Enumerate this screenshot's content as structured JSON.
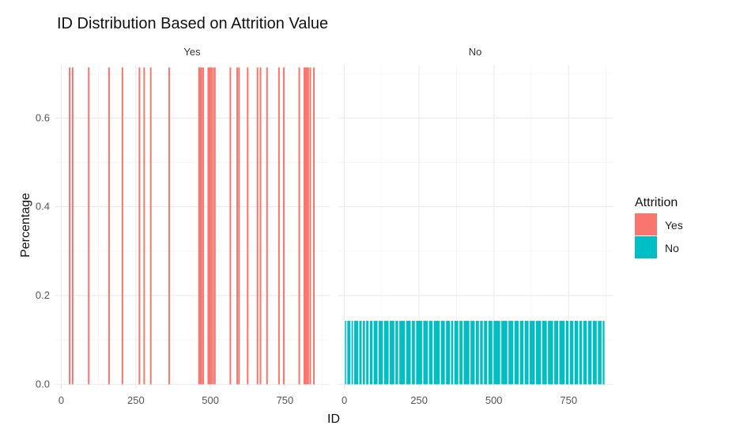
{
  "chart_data": {
    "type": "bar",
    "title": "ID Distribution Based on Attrition Value",
    "xlabel": "ID",
    "ylabel": "Percentage",
    "xlim": [
      -20,
      900
    ],
    "ylim": [
      -0.01,
      0.72
    ],
    "x_ticks": [
      0,
      250,
      500,
      750
    ],
    "y_ticks": [
      0.0,
      0.2,
      0.4,
      0.6
    ],
    "y_tick_labels": [
      "0.0",
      "0.2",
      "0.4",
      "0.6"
    ],
    "grid": true,
    "legend": {
      "title": "Attrition",
      "position": "right",
      "items": [
        {
          "label": "Yes",
          "color": "#F8766D"
        },
        {
          "label": "No",
          "color": "#00BFC4"
        }
      ]
    },
    "panels": [
      {
        "strip": "Yes",
        "color": "#F8766D",
        "bar_value": 0.714,
        "ids": [
          28,
          38,
          92,
          160,
          205,
          262,
          278,
          300,
          362,
          462,
          466,
          470,
          476,
          493,
          498,
          503,
          509,
          515,
          567,
          590,
          596,
          625,
          658,
          668,
          690,
          730,
          746,
          798,
          815,
          819,
          823,
          828,
          835,
          847
        ]
      },
      {
        "strip": "No",
        "color": "#00BFC4",
        "bar_value": 0.143,
        "id_range": [
          2,
          870
        ],
        "gap_ids": [
          8,
          22,
          31,
          48,
          60,
          71,
          83,
          96,
          113,
          131,
          150,
          169,
          182,
          205,
          224,
          238,
          262,
          281,
          297,
          321,
          338,
          355,
          366,
          383,
          397,
          420,
          438,
          452,
          465,
          480,
          497,
          523,
          547,
          567,
          585,
          601,
          618,
          639,
          660,
          679,
          700,
          717,
          739,
          752,
          768,
          784,
          797,
          813,
          829,
          846,
          862
        ]
      }
    ]
  }
}
